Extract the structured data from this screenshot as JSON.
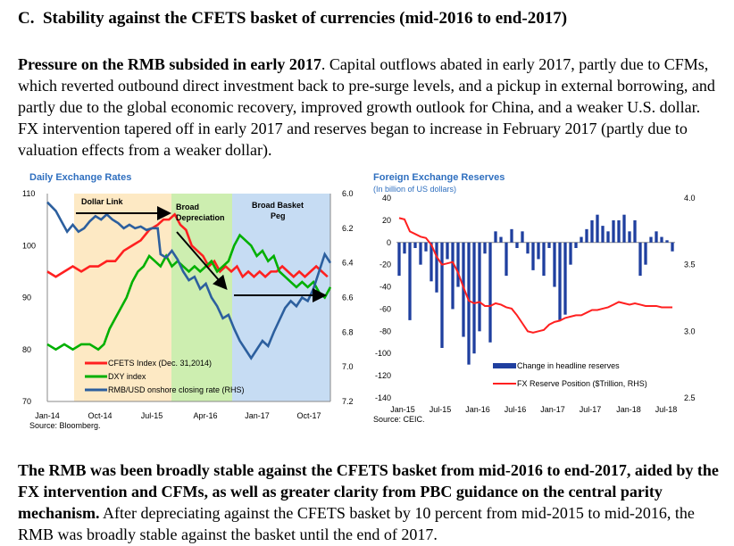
{
  "section": {
    "heading": "C.  Stability against the CFETS basket of currencies (mid-2016 to end-2017)"
  },
  "para1": {
    "bold": "Pressure on the RMB subsided in early 2017",
    "text": ". Capital outflows abated in early 2017, partly due to CFMs, which reverted outbound direct investment back to pre-surge levels, and a pickup in external borrowing, and partly due to the global economic recovery, improved growth outlook for China, and a weaker U.S. dollar. FX intervention tapered off in early 2017 and reserves began to increase in February 2017 (partly due to valuation effects from a weaker dollar)."
  },
  "para2": {
    "bold": "The RMB was been broadly stable against the CFETS basket from mid-2016 to end-2017, aided by the FX intervention and CFMs, as well as greater clarity from PBC guidance on the central parity mechanism.",
    "text": " After depreciating against the CFETS basket by 10 percent from mid-2015 to mid-2016, the RMB was broadly stable against the basket until the end of 2017."
  },
  "chart1": {
    "title": "Daily Exchange Rates",
    "source": "Source: Bloomberg.",
    "chart_data": {
      "type": "line",
      "x_ticks": [
        "Jan-14",
        "Oct-14",
        "Jul-15",
        "Apr-16",
        "Jan-17",
        "Oct-17"
      ],
      "y_left": {
        "ticks": [
          "110",
          "100",
          "90",
          "80",
          "70"
        ],
        "range": [
          70,
          110
        ]
      },
      "y_right": {
        "ticks": [
          "6.0",
          "6.2",
          "6.4",
          "6.6",
          "6.8",
          "7.0",
          "7.2"
        ],
        "range": [
          6.0,
          7.2
        ],
        "inverted": true
      },
      "regimes": [
        "Dollar Link",
        "Broad Depreciation",
        "Broad Basket Peg"
      ],
      "series": [
        {
          "name": "CFETS Index (Dec. 31,2014)",
          "axis": "left",
          "color": "#ff2020",
          "points": [
            [
              0,
              95
            ],
            [
              0.03,
              94
            ],
            [
              0.06,
              95
            ],
            [
              0.09,
              96
            ],
            [
              0.12,
              95
            ],
            [
              0.15,
              96
            ],
            [
              0.18,
              96
            ],
            [
              0.21,
              97
            ],
            [
              0.24,
              97
            ],
            [
              0.27,
              99
            ],
            [
              0.3,
              100
            ],
            [
              0.33,
              101
            ],
            [
              0.36,
              103
            ],
            [
              0.39,
              104
            ],
            [
              0.41,
              105
            ],
            [
              0.43,
              105
            ],
            [
              0.45,
              106
            ],
            [
              0.47,
              104
            ],
            [
              0.49,
              103
            ],
            [
              0.51,
              100
            ],
            [
              0.53,
              99
            ],
            [
              0.55,
              98
            ],
            [
              0.57,
              96
            ],
            [
              0.59,
              97
            ],
            [
              0.61,
              95
            ],
            [
              0.63,
              96
            ],
            [
              0.65,
              95
            ],
            [
              0.67,
              96
            ],
            [
              0.69,
              94
            ],
            [
              0.71,
              95
            ],
            [
              0.73,
              94
            ],
            [
              0.75,
              95
            ],
            [
              0.77,
              94
            ],
            [
              0.79,
              95
            ],
            [
              0.81,
              95
            ],
            [
              0.83,
              96
            ],
            [
              0.85,
              95
            ],
            [
              0.87,
              94
            ],
            [
              0.89,
              95
            ],
            [
              0.91,
              94
            ],
            [
              0.93,
              95
            ],
            [
              0.95,
              96
            ],
            [
              0.97,
              95
            ],
            [
              0.99,
              94
            ]
          ]
        },
        {
          "name": "DXY index",
          "axis": "left",
          "color": "#00b000",
          "points": [
            [
              0,
              81
            ],
            [
              0.03,
              80
            ],
            [
              0.06,
              81
            ],
            [
              0.09,
              80
            ],
            [
              0.12,
              81
            ],
            [
              0.15,
              81
            ],
            [
              0.18,
              80
            ],
            [
              0.2,
              81
            ],
            [
              0.22,
              84
            ],
            [
              0.24,
              86
            ],
            [
              0.26,
              88
            ],
            [
              0.28,
              90
            ],
            [
              0.3,
              93
            ],
            [
              0.32,
              95
            ],
            [
              0.34,
              96
            ],
            [
              0.36,
              98
            ],
            [
              0.38,
              97
            ],
            [
              0.4,
              96
            ],
            [
              0.42,
              98
            ],
            [
              0.44,
              96
            ],
            [
              0.46,
              97
            ],
            [
              0.48,
              96
            ],
            [
              0.5,
              95
            ],
            [
              0.52,
              96
            ],
            [
              0.54,
              95
            ],
            [
              0.56,
              96
            ],
            [
              0.58,
              97
            ],
            [
              0.6,
              95
            ],
            [
              0.62,
              96
            ],
            [
              0.64,
              97
            ],
            [
              0.66,
              100
            ],
            [
              0.68,
              102
            ],
            [
              0.7,
              101
            ],
            [
              0.72,
              100
            ],
            [
              0.74,
              98
            ],
            [
              0.76,
              99
            ],
            [
              0.78,
              97
            ],
            [
              0.8,
              98
            ],
            [
              0.82,
              95
            ],
            [
              0.84,
              94
            ],
            [
              0.86,
              93
            ],
            [
              0.88,
              92
            ],
            [
              0.9,
              93
            ],
            [
              0.92,
              92
            ],
            [
              0.94,
              93
            ],
            [
              0.96,
              91
            ],
            [
              0.98,
              90
            ],
            [
              1.0,
              92
            ]
          ]
        },
        {
          "name": "RMB/USD onshore closing rate (RHS)",
          "axis": "right",
          "color": "#2c5f9e",
          "points": [
            [
              0,
              6.05
            ],
            [
              0.03,
              6.1
            ],
            [
              0.05,
              6.16
            ],
            [
              0.07,
              6.22
            ],
            [
              0.09,
              6.18
            ],
            [
              0.11,
              6.22
            ],
            [
              0.13,
              6.2
            ],
            [
              0.15,
              6.16
            ],
            [
              0.17,
              6.13
            ],
            [
              0.19,
              6.15
            ],
            [
              0.21,
              6.12
            ],
            [
              0.23,
              6.15
            ],
            [
              0.25,
              6.17
            ],
            [
              0.27,
              6.2
            ],
            [
              0.29,
              6.18
            ],
            [
              0.31,
              6.2
            ],
            [
              0.33,
              6.19
            ],
            [
              0.35,
              6.21
            ],
            [
              0.37,
              6.2
            ],
            [
              0.39,
              6.2
            ],
            [
              0.4,
              6.35
            ],
            [
              0.42,
              6.37
            ],
            [
              0.44,
              6.33
            ],
            [
              0.46,
              6.38
            ],
            [
              0.48,
              6.45
            ],
            [
              0.5,
              6.5
            ],
            [
              0.52,
              6.48
            ],
            [
              0.54,
              6.55
            ],
            [
              0.56,
              6.52
            ],
            [
              0.58,
              6.6
            ],
            [
              0.6,
              6.65
            ],
            [
              0.62,
              6.72
            ],
            [
              0.64,
              6.7
            ],
            [
              0.66,
              6.78
            ],
            [
              0.68,
              6.85
            ],
            [
              0.7,
              6.9
            ],
            [
              0.72,
              6.95
            ],
            [
              0.74,
              6.9
            ],
            [
              0.76,
              6.85
            ],
            [
              0.78,
              6.88
            ],
            [
              0.8,
              6.8
            ],
            [
              0.82,
              6.73
            ],
            [
              0.84,
              6.66
            ],
            [
              0.86,
              6.62
            ],
            [
              0.88,
              6.65
            ],
            [
              0.9,
              6.6
            ],
            [
              0.92,
              6.62
            ],
            [
              0.94,
              6.55
            ],
            [
              0.96,
              6.45
            ],
            [
              0.98,
              6.35
            ],
            [
              1.0,
              6.4
            ]
          ]
        }
      ]
    }
  },
  "chart2": {
    "title": "Foreign Exchange Reserves",
    "subtitle": "(In billion of US dollars)",
    "source": "Source: CEIC.",
    "chart_data": {
      "type": "bar",
      "x_ticks": [
        "Jan-15",
        "Jul-15",
        "Jan-16",
        "Jul-16",
        "Jan-17",
        "Jul-17",
        "Jan-18",
        "Jul-18"
      ],
      "y_left": {
        "ticks": [
          "40",
          "20",
          "0",
          "-20",
          "-40",
          "-60",
          "-80",
          "-100",
          "-120",
          "-140"
        ],
        "range": [
          -140,
          40
        ]
      },
      "y_right": {
        "ticks": [
          "4.0",
          "3.5",
          "3.0",
          "2.5"
        ],
        "range": [
          2.5,
          4.0
        ]
      },
      "series": [
        {
          "name": "Change in headline reserves",
          "type": "bar",
          "axis": "left",
          "color": "#1f3f9f",
          "values": [
            -30,
            -10,
            -70,
            -5,
            -20,
            -8,
            -35,
            -45,
            -95,
            -15,
            -60,
            -40,
            -85,
            -110,
            -100,
            -80,
            -10,
            -90,
            10,
            5,
            -30,
            12,
            -5,
            10,
            -10,
            -25,
            -15,
            -30,
            -5,
            -40,
            -70,
            -65,
            -20,
            -5,
            5,
            12,
            20,
            25,
            15,
            10,
            20,
            20,
            25,
            10,
            20,
            -30,
            -20,
            5,
            10,
            5,
            2,
            -8
          ]
        },
        {
          "name": "FX Reserve Position ($Trillion, RHS)",
          "type": "line",
          "axis": "right",
          "color": "#ff2020",
          "values": [
            3.85,
            3.84,
            3.75,
            3.73,
            3.71,
            3.7,
            3.65,
            3.56,
            3.5,
            3.51,
            3.52,
            3.44,
            3.33,
            3.23,
            3.21,
            3.22,
            3.19,
            3.19,
            3.21,
            3.2,
            3.18,
            3.17,
            3.12,
            3.06,
            3.0,
            2.99,
            3.0,
            3.01,
            3.05,
            3.07,
            3.08,
            3.1,
            3.11,
            3.12,
            3.12,
            3.14,
            3.16,
            3.16,
            3.17,
            3.18,
            3.2,
            3.22,
            3.21,
            3.2,
            3.21,
            3.2,
            3.19,
            3.19,
            3.19,
            3.18,
            3.18,
            3.18
          ]
        }
      ]
    }
  }
}
